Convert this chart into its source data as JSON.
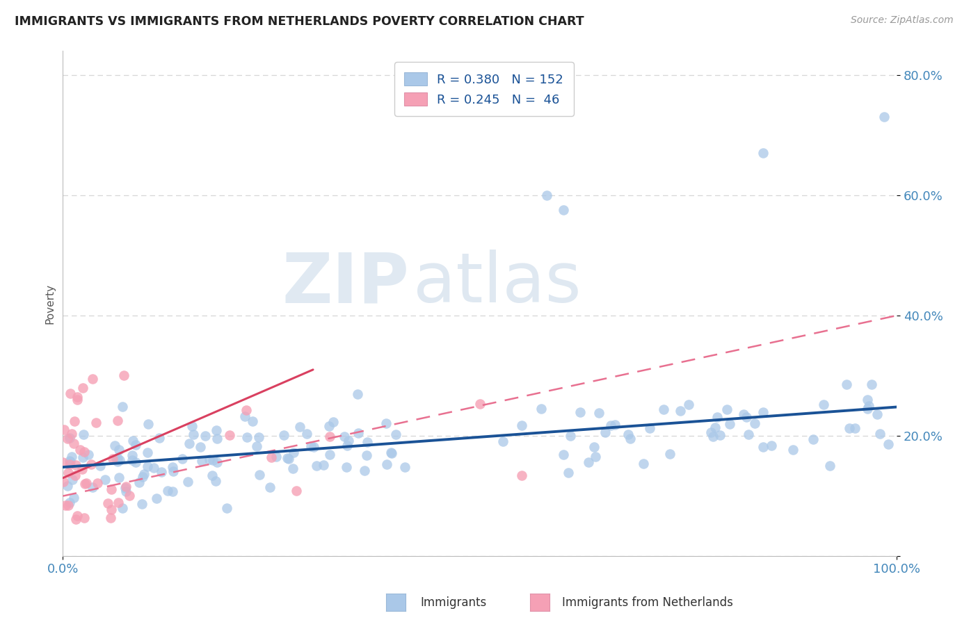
{
  "title": "IMMIGRANTS VS IMMIGRANTS FROM NETHERLANDS POVERTY CORRELATION CHART",
  "source": "Source: ZipAtlas.com",
  "ylabel": "Poverty",
  "xlim": [
    0,
    1.0
  ],
  "ylim": [
    0,
    0.84
  ],
  "legend_r1": "R = 0.380",
  "legend_n1": "N = 152",
  "legend_r2": "R = 0.245",
  "legend_n2": "N =  46",
  "blue_scatter_color": "#aac8e8",
  "blue_line_color": "#1a5296",
  "pink_scatter_color": "#f5a0b5",
  "pink_line_solid_color": "#d94060",
  "pink_line_dashed_color": "#e87090",
  "watermark_zip": "ZIP",
  "watermark_atlas": "atlas",
  "title_color": "#222222",
  "axis_label_color": "#555555",
  "tick_color": "#4488bb",
  "grid_color": "#cccccc",
  "background_color": "#ffffff",
  "blue_line_intercept": 0.148,
  "blue_line_slope": 0.1,
  "pink_solid_intercept": 0.13,
  "pink_solid_slope": 0.6,
  "pink_dashed_intercept": 0.1,
  "pink_dashed_slope": 0.3
}
